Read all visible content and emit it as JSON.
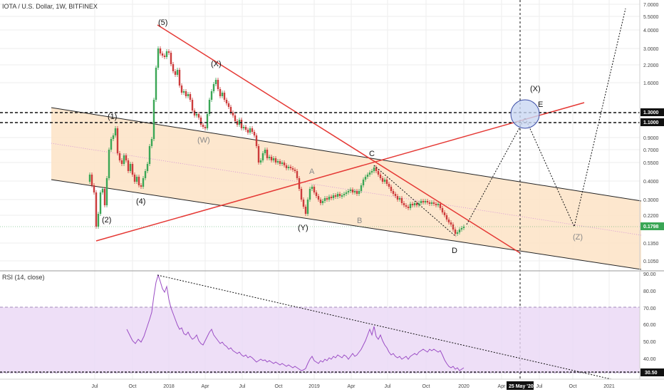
{
  "header": {
    "title": "IOTA / U.S. Dollar, 1W, BITFINEX"
  },
  "colors": {
    "channel_fill": "#fde3c6",
    "rsi_band_fill": "#ead7f5",
    "up_candle": "#3aa655",
    "down_candle": "#cc3b3b",
    "trend_red": "#e53935",
    "price_tag": "#3aa655"
  },
  "price_axis": {
    "ticks": [
      "7.0000",
      "5.5000",
      "4.0000",
      "3.0000",
      "2.2000",
      "1.6000",
      "1.3000",
      "1.1000",
      "0.9000",
      "0.7000",
      "0.5500",
      "0.4000",
      "0.3000",
      "0.2200",
      "0.1350",
      "0.1050"
    ],
    "current_price": "0.1798",
    "key_levels": [
      "1.3000",
      "1.1000"
    ]
  },
  "time_axis": {
    "ticks": [
      "Jul",
      "Oct",
      "2018",
      "Apr",
      "Jul",
      "Oct",
      "2019",
      "Apr",
      "Jul",
      "Oct",
      "2020",
      "Apr",
      "Jul",
      "Oct",
      "2021"
    ],
    "crosshair_label": "25 May '20"
  },
  "wave_labels": {
    "w1": "(1)",
    "w2": "(2)",
    "w4": "(4)",
    "w5": "(5)",
    "wx": "(X)",
    "ww": "(W)",
    "wy": "(Y)",
    "a": "A",
    "b": "B",
    "c": "C",
    "d": "D",
    "e": "E",
    "wx_future": "(X)",
    "wz": "(Z)"
  },
  "rsi": {
    "title": "RSI (14, close)",
    "ticks": [
      "90.00",
      "80.00",
      "70.00",
      "60.00",
      "50.00",
      "40.00",
      "30.50"
    ],
    "current_value": "30.50",
    "band": [
      30,
      70
    ]
  },
  "chart_data": {
    "type": "candlestick",
    "title": "IOTA / U.S. Dollar, 1W, BITFINEX",
    "y_scale": "log",
    "y_range": [
      0.09,
      8.5
    ],
    "x_range": [
      "2017-06",
      "2021-04"
    ],
    "key_points": [
      {
        "label": "(2)",
        "date": "2017-07",
        "price": 0.15
      },
      {
        "label": "(1)",
        "date": "2017-09",
        "price": 1.2
      },
      {
        "label": "(4)",
        "date": "2017-11",
        "price": 0.33
      },
      {
        "label": "(5)",
        "date": "2017-12",
        "price": 5.6
      },
      {
        "label": "(X)",
        "date": "2018-05",
        "price": 2.7
      },
      {
        "label": "(W)",
        "date": "2018-04",
        "price": 0.95
      },
      {
        "label": "(Y)",
        "date": "2018-12",
        "price": 0.22
      },
      {
        "label": "A",
        "date": "2019-02",
        "price": 0.35
      },
      {
        "label": "B",
        "date": "2019-04",
        "price": 0.24
      },
      {
        "label": "C",
        "date": "2019-06",
        "price": 0.5
      },
      {
        "label": "D",
        "date": "2019-12",
        "price": 0.15
      },
      {
        "label": "E",
        "date": "2020-06",
        "price": 1.2
      },
      {
        "label": "(Z)",
        "date": "2020-10",
        "price": 0.19
      }
    ],
    "horizontal_levels": [
      1.3,
      1.1
    ],
    "current_price": 0.1798,
    "rsi": {
      "period": 14,
      "current": 30.5,
      "peak": 88,
      "band": [
        30,
        70
      ],
      "ylim": [
        28,
        90
      ]
    }
  }
}
